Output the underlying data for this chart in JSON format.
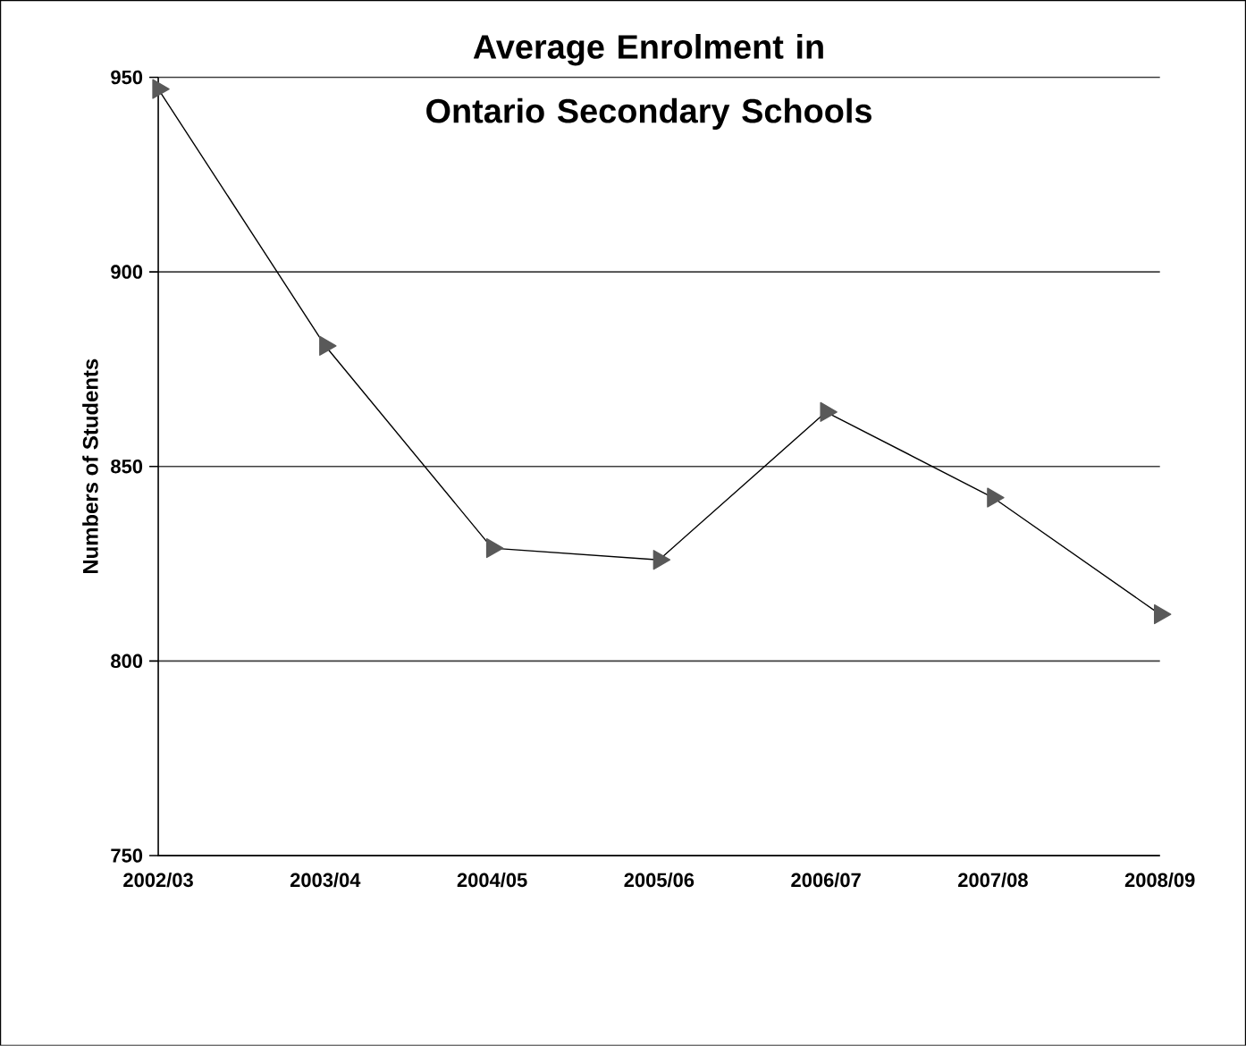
{
  "chart_data": {
    "type": "line",
    "title": "Average Enrolment in Ontario Secondary Schools",
    "ylabel": "Numbers of Students",
    "categories": [
      "2002/03",
      "2003/04",
      "2004/05",
      "2005/06",
      "2006/07",
      "2007/08",
      "2008/09"
    ],
    "series": [
      {
        "color": "#595959",
        "values": [
          947,
          881,
          829,
          826,
          864,
          842,
          812
        ]
      }
    ],
    "ylim": [
      750,
      950
    ],
    "yticks": [
      750,
      800,
      850,
      900,
      950
    ],
    "grid": "y",
    "marker": "triangle",
    "line_style": "solid"
  }
}
